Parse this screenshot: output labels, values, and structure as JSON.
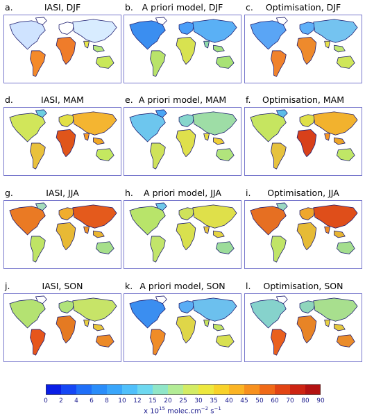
{
  "panels": [
    {
      "label": "a.",
      "title": "IASI, DJF",
      "map": "iasi-djf"
    },
    {
      "label": "b.",
      "title": "A priori model, DJF",
      "map": "apriori-djf"
    },
    {
      "label": "c.",
      "title": "Optimisation, DJF",
      "map": "optim-djf"
    },
    {
      "label": "d.",
      "title": "IASI, MAM",
      "map": "iasi-mam"
    },
    {
      "label": "e.",
      "title": "A priori model, MAM",
      "map": "apriori-mam"
    },
    {
      "label": "f.",
      "title": "Optimisation, MAM",
      "map": "optim-mam"
    },
    {
      "label": "g.",
      "title": "IASI, JJA",
      "map": "iasi-jja"
    },
    {
      "label": "h.",
      "title": "A priori model, JJA",
      "map": "apriori-jja"
    },
    {
      "label": "i.",
      "title": "Optimisation, JJA",
      "map": "optim-jja"
    },
    {
      "label": "j.",
      "title": "IASI, SON",
      "map": "iasi-son"
    },
    {
      "label": "k.",
      "title": "A priori model, SON",
      "map": "apriori-son"
    },
    {
      "label": "l.",
      "title": "Optimisation, SON",
      "map": "optim-son"
    }
  ],
  "colorbar": {
    "ticks": [
      "0",
      "2",
      "4",
      "6",
      "8",
      "10",
      "12",
      "15",
      "20",
      "25",
      "30",
      "35",
      "40",
      "45",
      "50",
      "60",
      "70",
      "80",
      "90"
    ],
    "colors": [
      "#0a1ee6",
      "#1547f5",
      "#1f6ff8",
      "#2a8dfa",
      "#3aa6fb",
      "#50c0fb",
      "#6ed8f0",
      "#90e6c8",
      "#b3ec96",
      "#d3ec64",
      "#ede83f",
      "#f8d22a",
      "#fbb424",
      "#f7901e",
      "#f06a18",
      "#e24414",
      "#cd2413",
      "#b31212"
    ],
    "unit_prefix": "x 10",
    "unit_exp": "15",
    "unit_main": " molec.cm",
    "unit_exp2": "−2",
    "unit_end": " s",
    "unit_exp3": "−1"
  }
}
